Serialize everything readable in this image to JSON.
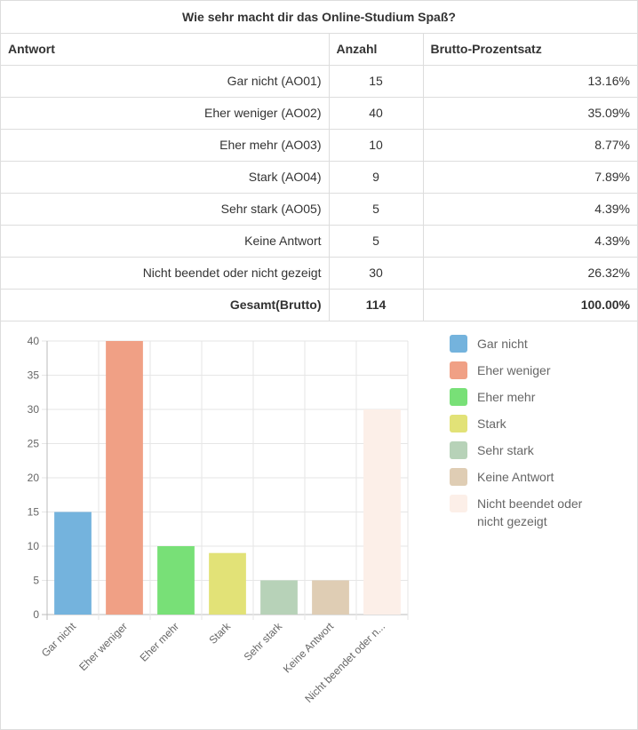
{
  "question": "Wie sehr macht dir das Online-Studium Spaß?",
  "table": {
    "headers": [
      "Antwort",
      "Anzahl",
      "Brutto-Prozentsatz"
    ],
    "rows": [
      {
        "label": "Gar nicht (AO01)",
        "count": "15",
        "percent": "13.16%"
      },
      {
        "label": "Eher weniger (AO02)",
        "count": "40",
        "percent": "35.09%"
      },
      {
        "label": "Eher mehr (AO03)",
        "count": "10",
        "percent": "8.77%"
      },
      {
        "label": "Stark (AO04)",
        "count": "9",
        "percent": "7.89%"
      },
      {
        "label": "Sehr stark (AO05)",
        "count": "5",
        "percent": "4.39%"
      },
      {
        "label": "Keine Antwort",
        "count": "5",
        "percent": "4.39%"
      },
      {
        "label": "Nicht beendet oder nicht gezeigt",
        "count": "30",
        "percent": "26.32%"
      }
    ],
    "total": {
      "label": "Gesamt(Brutto)",
      "count": "114",
      "percent": "100.00%"
    }
  },
  "chart_data": {
    "type": "bar",
    "categories": [
      "Gar nicht",
      "Eher weniger",
      "Eher mehr",
      "Stark",
      "Sehr stark",
      "Keine Antwort",
      "Nicht beendet oder nicht gezeigt"
    ],
    "tick_labels": [
      "Gar nicht",
      "Eher weniger",
      "Eher mehr",
      "Stark",
      "Sehr stark",
      "Keine Antwort",
      "Nicht beendet oder n..."
    ],
    "values": [
      15,
      40,
      10,
      9,
      5,
      5,
      30
    ],
    "colors": [
      "#74b3dd",
      "#f0a085",
      "#78e077",
      "#e2e277",
      "#b7d2b8",
      "#dfcdb4",
      "#fcefe8"
    ],
    "ylim": [
      0,
      40
    ],
    "yticks": [
      0,
      5,
      10,
      15,
      20,
      25,
      30,
      35,
      40
    ],
    "grid": true,
    "legend_position": "right",
    "legend": [
      {
        "label": "Gar nicht",
        "color": "#74b3dd"
      },
      {
        "label": "Eher weniger",
        "color": "#f0a085"
      },
      {
        "label": "Eher mehr",
        "color": "#78e077"
      },
      {
        "label": "Stark",
        "color": "#e2e277"
      },
      {
        "label": "Sehr stark",
        "color": "#b7d2b8"
      },
      {
        "label": "Keine Antwort",
        "color": "#dfcdb4"
      },
      {
        "label": "Nicht beendet oder nicht gezeigt",
        "color": "#fcefe8"
      }
    ]
  }
}
